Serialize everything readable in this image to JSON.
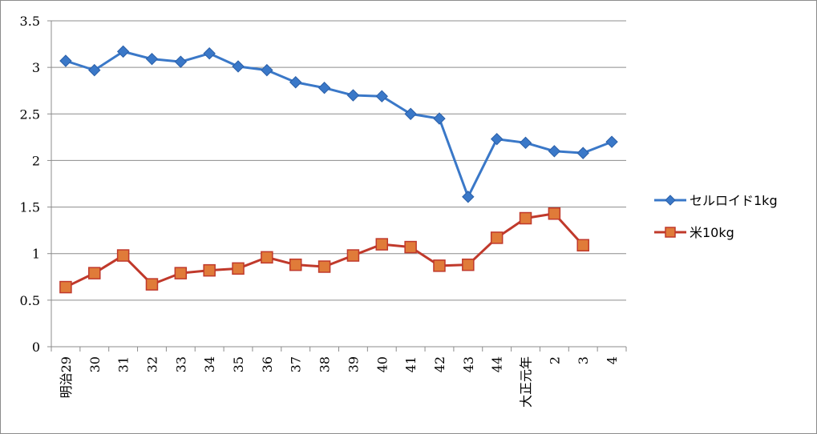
{
  "chart_data": {
    "type": "line",
    "categories": [
      "明治29",
      "30",
      "31",
      "32",
      "33",
      "34",
      "35",
      "36",
      "37",
      "38",
      "39",
      "40",
      "41",
      "42",
      "43",
      "44",
      "大正元年",
      "2",
      "3",
      "4"
    ],
    "series": [
      {
        "name": "セルロイド1kg",
        "color": "#3a78c8",
        "marker": "diamond",
        "values": [
          3.07,
          2.97,
          3.17,
          3.09,
          3.06,
          3.15,
          3.01,
          2.97,
          2.84,
          2.78,
          2.7,
          2.69,
          2.5,
          2.45,
          1.61,
          2.23,
          2.19,
          2.1,
          2.08,
          2.2
        ]
      },
      {
        "name": "米10kg",
        "color": "#c0392b",
        "marker_fill": "#e07b39",
        "marker": "square",
        "values": [
          0.64,
          0.79,
          0.98,
          0.67,
          0.79,
          0.82,
          0.84,
          0.96,
          0.88,
          0.86,
          0.98,
          1.1,
          1.07,
          0.87,
          0.88,
          1.17,
          1.38,
          1.43,
          1.09,
          null
        ]
      }
    ],
    "y_ticks": [
      "0",
      "0.5",
      "1",
      "1.5",
      "2",
      "2.5",
      "3",
      "3.5"
    ],
    "ylim": [
      0,
      3.5
    ],
    "grid": true,
    "legend_position": "right"
  }
}
